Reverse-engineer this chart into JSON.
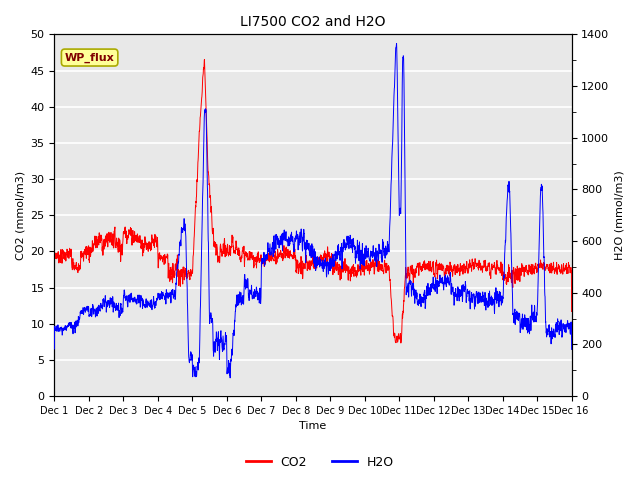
{
  "title": "LI7500 CO2 and H2O",
  "xlabel": "Time",
  "ylabel_left": "CO2 (mmol/m3)",
  "ylabel_right": "H2O (mmol/m3)",
  "site_label": "WP_flux",
  "ylim_left": [
    0,
    50
  ],
  "ylim_right": [
    0,
    1400
  ],
  "yticks_left": [
    0,
    5,
    10,
    15,
    20,
    25,
    30,
    35,
    40,
    45,
    50
  ],
  "yticks_right": [
    0,
    200,
    400,
    600,
    800,
    1000,
    1200,
    1400
  ],
  "xtick_labels": [
    "Dec 1",
    "Dec 2",
    "Dec 3",
    "Dec 4",
    "Dec 5",
    "Dec 6",
    "Dec 7",
    "Dec 8",
    "Dec 9",
    "Dec 10",
    "Dec 11",
    "Dec 12",
    "Dec 13",
    "Dec 14",
    "Dec 15",
    "Dec 16"
  ],
  "bg_color": "#e8e8e8",
  "grid_color": "#ffffff",
  "co2_color": "#ff0000",
  "h2o_color": "#0000ff",
  "n_points": 3000
}
